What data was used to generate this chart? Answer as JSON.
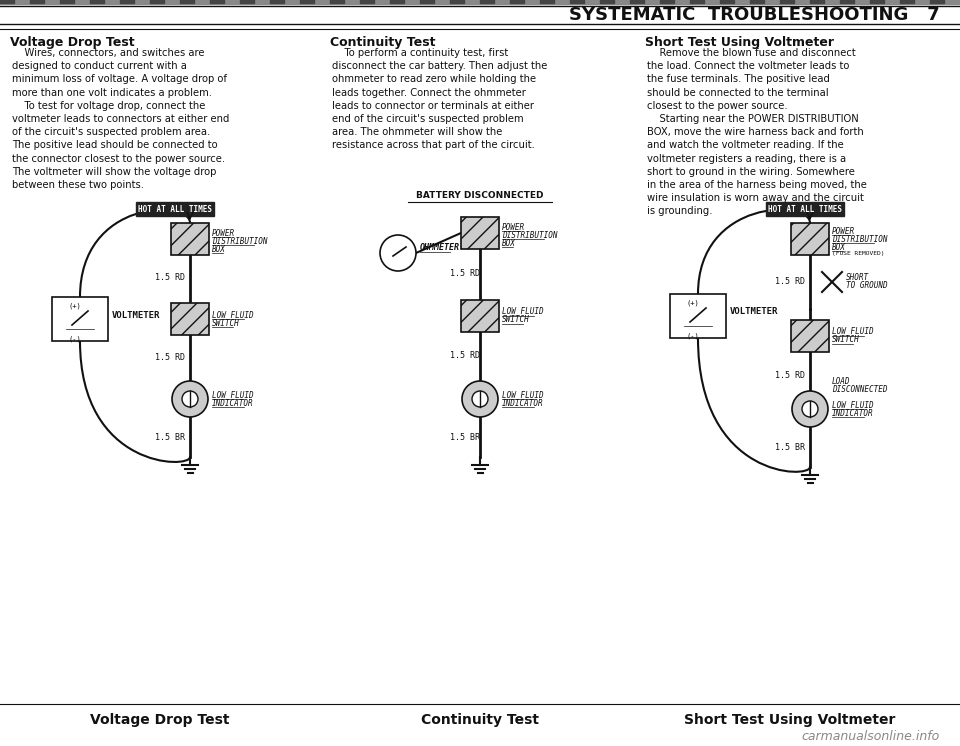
{
  "bg_color": "#ffffff",
  "page_title": "SYSTEMATIC  TROUBLESHOOTING   7",
  "section1_title": "Voltage Drop Test",
  "section2_title": "Continuity Test",
  "section3_title": "Short Test Using Voltmeter",
  "section1_body": "    Wires, connectors, and switches are\ndesigned to conduct current with a\nminimum loss of voltage. A voltage drop of\nmore than one volt indicates a problem.\n    To test for voltage drop, connect the\nvoltmeter leads to connectors at either end\nof the circuit's suspected problem area.\nThe positive lead should be connected to\nthe connector closest to the power source.\nThe voltmeter will show the voltage drop\nbetween these two points.",
  "section2_body": "    To perform a continuity test, first\ndisconnect the car battery. Then adjust the\nohmmeter to read zero while holding the\nleads together. Connect the ohmmeter\nleads to connector or terminals at either\nend of the circuit's suspected problem\narea. The ohmmeter will show the\nresistance across that part of the circuit.",
  "section3_body": "    Remove the blown fuse and disconnect\nthe load. Connect the voltmeter leads to\nthe fuse terminals. The positive lead\nshould be connected to the terminal\nclosest to the power source.\n    Starting near the POWER DISTRIBUTION\nBOX, move the wire harness back and forth\nand watch the voltmeter reading. If the\nvoltmeter registers a reading, there is a\nshort to ground in the wiring. Somewhere\nin the area of the harness being moved, the\nwire insulation is worn away and the circuit\nis grounding.",
  "footer1": "Voltage Drop Test",
  "footer2": "Continuity Test",
  "footer3": "Short Test Using Voltmeter",
  "watermark": "carmanualsonline.info"
}
